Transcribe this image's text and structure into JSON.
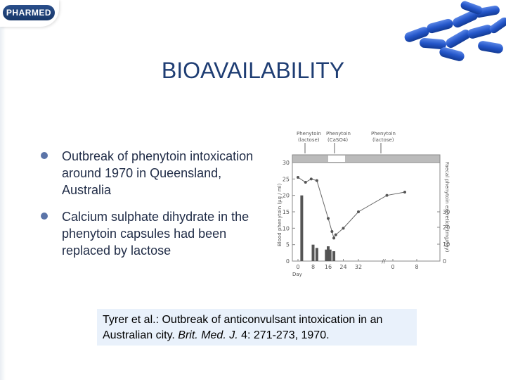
{
  "logo": {
    "text": "PHARMED"
  },
  "slide": {
    "title": "BIOAVAILABILITY"
  },
  "bullets": [
    {
      "text": "Outbreak of phenytoin intoxication around 1970 in Queensland, Australia"
    },
    {
      "text": "Calcium sulphate dihydrate in the phenytoin capsules had been replaced by lactose"
    }
  ],
  "figure": {
    "annotations": {
      "a1_line1": "Phenytoin",
      "a1_line2": "(lactose)",
      "a2_line1": "Phenytoin",
      "a2_line2": "(CaSO4)",
      "a3_line1": "Phenytoin",
      "a3_line2": "(lactose)"
    },
    "y_left_label": "Blood phenytoin (µg / ml)",
    "y_right_label": "Faecal phenytoin excretion (mg/day)",
    "x_label": "Day",
    "left_ticks": [
      "30",
      "25",
      "20",
      "15",
      "10",
      "5",
      "0"
    ],
    "right_ticks": [
      "30",
      "20",
      "10",
      "0"
    ],
    "x_ticks": [
      "0",
      "8",
      "16",
      "24",
      "32",
      "0",
      "8"
    ]
  },
  "chart_data": {
    "type": "line",
    "x": [
      0,
      4,
      7,
      10,
      16,
      18,
      19,
      20,
      24,
      32,
      38,
      44
    ],
    "series": [
      {
        "values": [
          25.5,
          24,
          25,
          24.5,
          13,
          9,
          7,
          8,
          10,
          15,
          20,
          21
        ]
      }
    ],
    "bars": {
      "x": [
        2,
        8,
        10,
        15,
        16,
        17,
        19
      ],
      "values": [
        20,
        5,
        4,
        3.5,
        4.5,
        3.5,
        3
      ]
    },
    "ylim_left": [
      0,
      30
    ],
    "ylim_right": [
      0,
      30
    ]
  },
  "citation": {
    "prefix": "Tyrer et al.: Outbreak of anticonvulsant intoxication in an Australian city. ",
    "journal": "Brit. Med. J.",
    "suffix": " 4: 271-273, 1970."
  }
}
